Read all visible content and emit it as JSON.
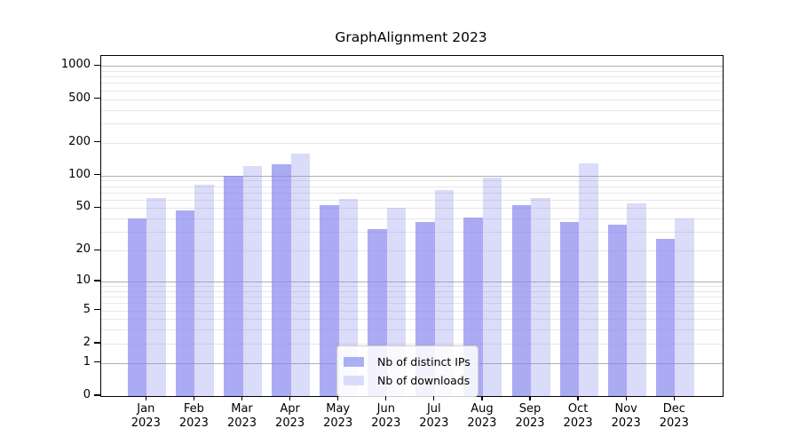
{
  "chart_data": {
    "type": "bar",
    "title": "GraphAlignment 2023",
    "year": "2023",
    "months": [
      "Jan",
      "Feb",
      "Mar",
      "Apr",
      "May",
      "Jun",
      "Jul",
      "Aug",
      "Sep",
      "Oct",
      "Nov",
      "Dec"
    ],
    "categories": [
      "Jan 2023",
      "Feb 2023",
      "Mar 2023",
      "Apr 2023",
      "May 2023",
      "Jun 2023",
      "Jul 2023",
      "Aug 2023",
      "Sep 2023",
      "Oct 2023",
      "Nov 2023",
      "Dec 2023"
    ],
    "series": [
      {
        "name": "Nb of distinct IPs",
        "color": "rgba(136,136,238,0.7)",
        "swatch_color": "#abaff3",
        "values": [
          40,
          48,
          100,
          127,
          53,
          32,
          37,
          41,
          53,
          37,
          35,
          26
        ]
      },
      {
        "name": "Nb of downloads",
        "color": "rgba(136,136,238,0.3)",
        "swatch_color": "#dbdbfa",
        "values": [
          62,
          83,
          122,
          160,
          61,
          50,
          73,
          96,
          62,
          130,
          55,
          40
        ]
      }
    ],
    "y_ticks": [
      0,
      1,
      2,
      5,
      10,
      20,
      50,
      100,
      200,
      500,
      1000
    ],
    "y_scale": "log10(1+value)",
    "ylim": [
      0,
      1000
    ],
    "grid": true,
    "legend_position": "bottom-center-inside",
    "colors": {
      "major_grid": "#b0b0b0",
      "minor_grid": "#e7e7e7",
      "axis": "#000000"
    }
  }
}
